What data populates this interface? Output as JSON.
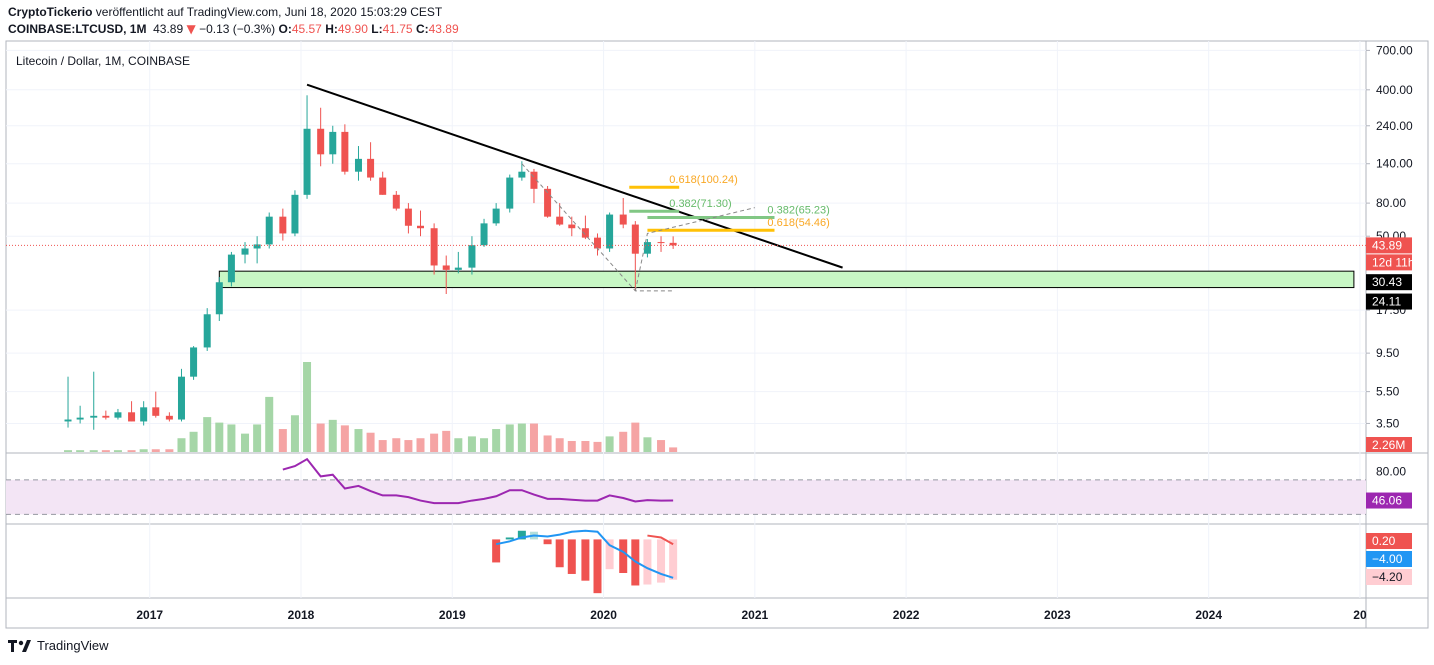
{
  "header": {
    "publisher": "CryptoTickerio",
    "publisher_rest": " veröffentlicht auf TradingView.com, Juni 18, 2020 15:03:29 CEST",
    "symbol": "COINBASE:LTCUSD, 1M",
    "price": "43.89",
    "change": "−0.13 (−0.3%)",
    "o_label": "O:",
    "o": "45.57",
    "h_label": "H:",
    "h": "49.90",
    "l_label": "L:",
    "l": "41.75",
    "c_label": "C:",
    "c": "43.89"
  },
  "footer": {
    "brand": "TradingView"
  },
  "colors": {
    "up": "#26a69a",
    "down": "#ef5350",
    "trend": "#000000",
    "rsi": "#9c27b0",
    "rsi_band": "#f3e5f5",
    "zone": "#c8f7c5",
    "fib_orange": "#ffc107",
    "fib_green": "#81c784",
    "hist_blue": "#2196f3"
  },
  "chart_data": [
    {
      "type": "candlestick",
      "title": "Litecoin / Dollar, 1M, COINBASE",
      "yscale": "log",
      "ylim": [
        2.3,
        800
      ],
      "y_ticks": [
        "700.00",
        "400.00",
        "240.00",
        "140.00",
        "80.00",
        "50.00",
        "17.50",
        "9.50",
        "5.50",
        "3.50"
      ],
      "x_ticks": [
        "2017",
        "2018",
        "2019",
        "2020",
        "2021",
        "2022",
        "2023",
        "2024",
        "20"
      ],
      "xlim": [
        2016.05,
        2025.04
      ],
      "price_labels": [
        "43.89",
        "12d 11h",
        "30.43",
        "24.11"
      ],
      "volume_label": "2.26M",
      "candles": [
        {
          "t": 2016.46,
          "o": 3.6,
          "h": 6.8,
          "l": 3.3,
          "c": 3.7
        },
        {
          "t": 2016.54,
          "o": 3.7,
          "h": 4.5,
          "l": 3.5,
          "c": 3.8
        },
        {
          "t": 2016.63,
          "o": 3.8,
          "h": 7.3,
          "l": 3.2,
          "c": 3.9
        },
        {
          "t": 2016.71,
          "o": 3.9,
          "h": 4.2,
          "l": 3.7,
          "c": 3.8
        },
        {
          "t": 2016.79,
          "o": 3.8,
          "h": 4.3,
          "l": 3.7,
          "c": 4.1
        },
        {
          "t": 2016.88,
          "o": 4.1,
          "h": 4.8,
          "l": 3.6,
          "c": 3.6
        },
        {
          "t": 2016.96,
          "o": 3.6,
          "h": 4.8,
          "l": 3.4,
          "c": 4.4
        },
        {
          "t": 2017.04,
          "o": 4.4,
          "h": 5.5,
          "l": 3.8,
          "c": 3.9
        },
        {
          "t": 2017.13,
          "o": 3.9,
          "h": 4.1,
          "l": 3.6,
          "c": 3.7
        },
        {
          "t": 2017.21,
          "o": 3.7,
          "h": 7.6,
          "l": 3.6,
          "c": 6.8
        },
        {
          "t": 2017.29,
          "o": 6.8,
          "h": 10.5,
          "l": 6.5,
          "c": 10.3
        },
        {
          "t": 2017.38,
          "o": 10.3,
          "h": 18.0,
          "l": 9.8,
          "c": 16.5
        },
        {
          "t": 2017.46,
          "o": 16.5,
          "h": 28.0,
          "l": 15.0,
          "c": 26.0
        },
        {
          "t": 2017.54,
          "o": 26.0,
          "h": 40.0,
          "l": 24.5,
          "c": 38.5
        },
        {
          "t": 2017.63,
          "o": 38.5,
          "h": 46.0,
          "l": 34.0,
          "c": 42.0
        },
        {
          "t": 2017.71,
          "o": 42.0,
          "h": 50.0,
          "l": 34.0,
          "c": 44.5
        },
        {
          "t": 2017.79,
          "o": 44.5,
          "h": 70.0,
          "l": 42.0,
          "c": 66.0
        },
        {
          "t": 2017.88,
          "o": 66.0,
          "h": 74.0,
          "l": 47.0,
          "c": 52.0
        },
        {
          "t": 2017.96,
          "o": 52.0,
          "h": 96.0,
          "l": 50.0,
          "c": 90.0
        },
        {
          "t": 2018.04,
          "o": 90.0,
          "h": 370.0,
          "l": 85.0,
          "c": 230.0
        },
        {
          "t": 2018.13,
          "o": 230.0,
          "h": 310.0,
          "l": 135.0,
          "c": 160.0
        },
        {
          "t": 2018.21,
          "o": 160.0,
          "h": 240.0,
          "l": 140.0,
          "c": 220.0
        },
        {
          "t": 2018.29,
          "o": 220.0,
          "h": 245.0,
          "l": 120.0,
          "c": 125.0
        },
        {
          "t": 2018.38,
          "o": 125.0,
          "h": 180.0,
          "l": 110.0,
          "c": 150.0
        },
        {
          "t": 2018.46,
          "o": 150.0,
          "h": 190.0,
          "l": 110.0,
          "c": 115.0
        },
        {
          "t": 2018.54,
          "o": 115.0,
          "h": 125.0,
          "l": 90.0,
          "c": 90.0
        },
        {
          "t": 2018.63,
          "o": 90.0,
          "h": 95.0,
          "l": 72.0,
          "c": 74.0
        },
        {
          "t": 2018.71,
          "o": 74.0,
          "h": 80.0,
          "l": 52.0,
          "c": 58.0
        },
        {
          "t": 2018.79,
          "o": 58.0,
          "h": 72.0,
          "l": 50.0,
          "c": 56.0
        },
        {
          "t": 2018.88,
          "o": 56.0,
          "h": 60.0,
          "l": 29.0,
          "c": 33.0
        },
        {
          "t": 2018.96,
          "o": 33.0,
          "h": 38.0,
          "l": 22.0,
          "c": 31.0
        },
        {
          "t": 2019.04,
          "o": 31.0,
          "h": 40.0,
          "l": 29.5,
          "c": 32.0
        },
        {
          "t": 2019.13,
          "o": 32.0,
          "h": 50.0,
          "l": 29.0,
          "c": 44.0
        },
        {
          "t": 2019.21,
          "o": 44.0,
          "h": 64.0,
          "l": 43.0,
          "c": 60.0
        },
        {
          "t": 2019.29,
          "o": 60.0,
          "h": 80.0,
          "l": 58.0,
          "c": 74.0
        },
        {
          "t": 2019.38,
          "o": 74.0,
          "h": 120.0,
          "l": 70.0,
          "c": 115.0
        },
        {
          "t": 2019.46,
          "o": 115.0,
          "h": 145.0,
          "l": 110.0,
          "c": 125.0
        },
        {
          "t": 2019.54,
          "o": 125.0,
          "h": 130.0,
          "l": 80.0,
          "c": 98.0
        },
        {
          "t": 2019.63,
          "o": 98.0,
          "h": 102.0,
          "l": 65.0,
          "c": 66.0
        },
        {
          "t": 2019.71,
          "o": 66.0,
          "h": 80.0,
          "l": 58.0,
          "c": 59.0
        },
        {
          "t": 2019.79,
          "o": 59.0,
          "h": 66.0,
          "l": 50.0,
          "c": 56.0
        },
        {
          "t": 2019.88,
          "o": 56.0,
          "h": 67.0,
          "l": 48.0,
          "c": 49.0
        },
        {
          "t": 2019.96,
          "o": 49.0,
          "h": 52.0,
          "l": 38.0,
          "c": 42.0
        },
        {
          "t": 2020.04,
          "o": 42.0,
          "h": 70.0,
          "l": 40.0,
          "c": 68.0
        },
        {
          "t": 2020.13,
          "o": 68.0,
          "h": 86.0,
          "l": 56.0,
          "c": 59.0
        },
        {
          "t": 2020.21,
          "o": 59.0,
          "h": 62.0,
          "l": 23.0,
          "c": 39.0
        },
        {
          "t": 2020.29,
          "o": 39.0,
          "h": 48.0,
          "l": 37.0,
          "c": 46.0
        },
        {
          "t": 2020.38,
          "o": 46.0,
          "h": 50.0,
          "l": 40.0,
          "c": 45.5
        },
        {
          "t": 2020.46,
          "o": 45.5,
          "h": 49.9,
          "l": 41.75,
          "c": 43.89
        }
      ],
      "volumes": [
        0.2,
        0.2,
        0.2,
        0.2,
        0.2,
        0.2,
        0.3,
        0.3,
        0.3,
        1.5,
        2.2,
        3.8,
        3.2,
        3.0,
        2.0,
        3.0,
        6.0,
        2.5,
        4.0,
        9.8,
        3.1,
        3.5,
        2.9,
        2.5,
        2.1,
        1.3,
        1.5,
        1.3,
        1.5,
        2.0,
        2.3,
        1.5,
        1.7,
        1.5,
        2.5,
        3.0,
        3.1,
        3.1,
        1.8,
        1.5,
        1.2,
        1.2,
        1.1,
        1.7,
        2.2,
        3.2,
        1.6,
        1.3,
        0.5
      ],
      "annotations": {
        "trendline": {
          "from": {
            "t": 2018.04,
            "price": 430
          },
          "to": {
            "t": 2021.58,
            "price": 32
          }
        },
        "support_zone": {
          "t_start": 2017.46,
          "t_end": 2024.96,
          "price_top": 30.43,
          "price_bottom": 24.11
        },
        "fib_levels": [
          {
            "label": "0.618(100.24)",
            "price": 100.24,
            "t_start": 2020.17,
            "t_end": 2020.5,
            "color": "orange"
          },
          {
            "label": "0.382(71.30)",
            "price": 71.3,
            "t_start": 2020.17,
            "t_end": 2020.5,
            "color": "green"
          },
          {
            "label": "0.382(65.23)",
            "price": 65.23,
            "t_start": 2020.29,
            "t_end": 2021.13,
            "color": "green"
          },
          {
            "label": "0.618(54.46)",
            "price": 54.46,
            "t_start": 2020.29,
            "t_end": 2021.13,
            "color": "orange"
          }
        ]
      }
    },
    {
      "type": "line",
      "title": "RSI",
      "ylim": [
        20,
        100
      ],
      "y_ticks": [
        "80.00"
      ],
      "last_label": "46.06",
      "band": [
        30,
        70
      ],
      "x": [
        2017.88,
        2017.96,
        2018.04,
        2018.13,
        2018.21,
        2018.29,
        2018.38,
        2018.46,
        2018.54,
        2018.63,
        2018.71,
        2018.79,
        2018.88,
        2018.96,
        2019.04,
        2019.13,
        2019.21,
        2019.29,
        2019.38,
        2019.46,
        2019.54,
        2019.63,
        2019.71,
        2019.79,
        2019.88,
        2019.96,
        2020.04,
        2020.13,
        2020.21,
        2020.29,
        2020.38,
        2020.46
      ],
      "values": [
        82,
        86,
        94,
        74,
        76,
        60,
        63,
        57,
        52,
        52,
        50,
        46,
        43,
        43,
        43,
        46,
        48,
        51,
        58,
        58,
        53,
        48,
        48,
        47,
        46,
        46,
        52,
        49,
        45,
        46.5,
        46,
        46.06
      ]
    },
    {
      "type": "bar",
      "title": "Oscillator",
      "ylim": [
        -6,
        1.5
      ],
      "labels": [
        "0.20",
        "−4.00",
        "−4.20"
      ],
      "x": [
        2019.29,
        2019.38,
        2019.46,
        2019.54,
        2019.63,
        2019.71,
        2019.79,
        2019.88,
        2019.96,
        2020.04,
        2020.13,
        2020.21,
        2020.29,
        2020.38,
        2020.46
      ],
      "values": [
        -2.4,
        0.2,
        0.9,
        0.8,
        -0.5,
        -2.9,
        -3.6,
        -4.3,
        -5.6,
        -3.1,
        -3.5,
        -4.8,
        -4.7,
        -4.5,
        -4.2
      ],
      "line": [
        -0.5,
        -0.2,
        0.2,
        0.4,
        0.3,
        0.5,
        0.8,
        0.9,
        0.8,
        -0.6,
        -1.3,
        -2.3,
        -3.0,
        -3.6,
        -4.0
      ],
      "signal": [
        0.4,
        0.2,
        -0.5
      ]
    }
  ]
}
